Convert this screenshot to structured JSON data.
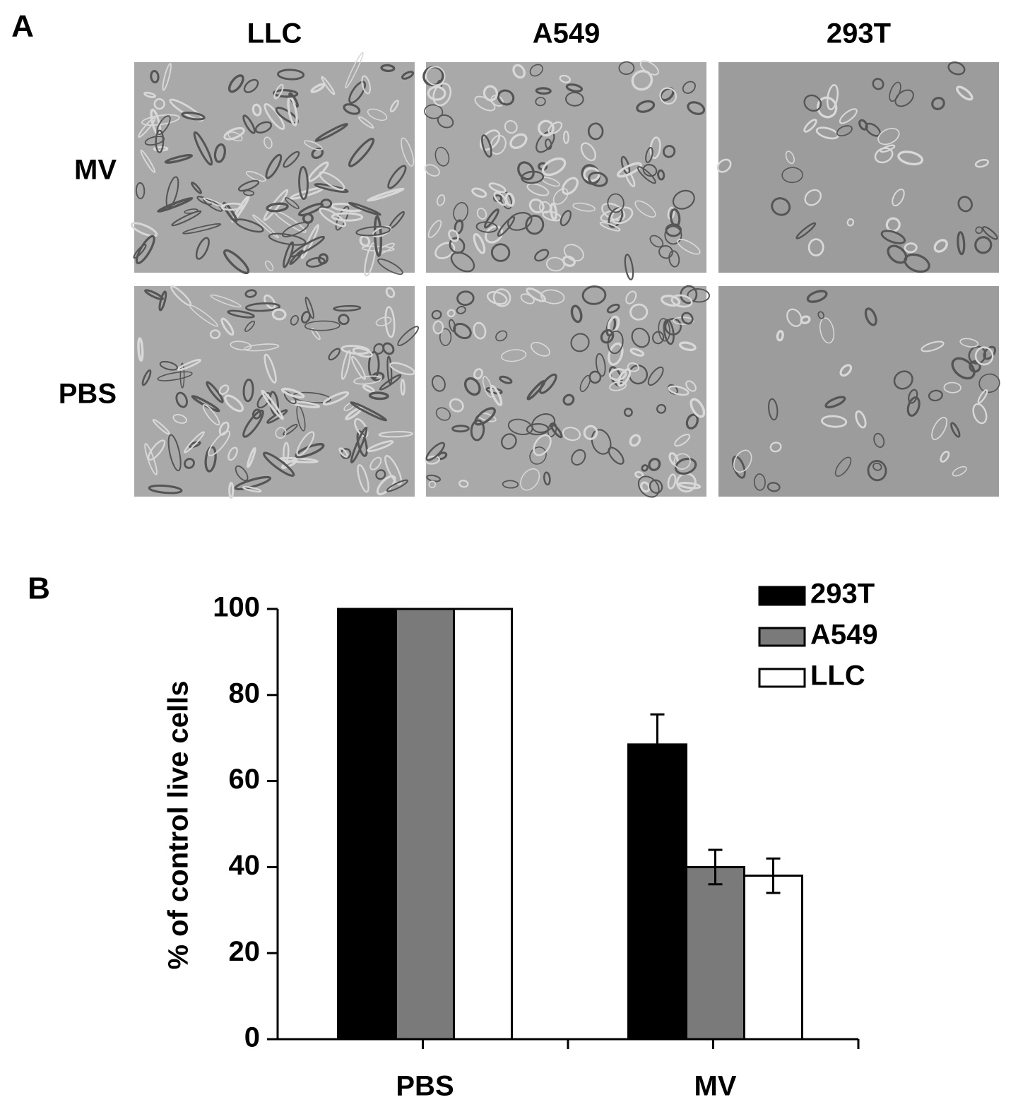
{
  "panel_a": {
    "label": "A",
    "columns": [
      "LLC",
      "A549",
      "293T"
    ],
    "rows": [
      "MV",
      "PBS"
    ]
  },
  "chart_data": {
    "type": "bar",
    "panel_label": "B",
    "ylabel": "% of control live cells",
    "categories": [
      "PBS",
      "MV"
    ],
    "series": [
      {
        "name": "293T",
        "color": "#000000",
        "values": [
          100,
          68.5
        ],
        "errors": [
          null,
          7
        ]
      },
      {
        "name": "A549",
        "color": "#7a7a7a",
        "values": [
          100,
          40
        ],
        "errors": [
          null,
          4
        ]
      },
      {
        "name": "LLC",
        "color": "#ffffff",
        "values": [
          100,
          38
        ],
        "errors": [
          null,
          4
        ]
      }
    ],
    "ylim": [
      0,
      100
    ],
    "yticks": [
      0,
      20,
      40,
      60,
      80,
      100
    ],
    "legend": "upper right"
  }
}
